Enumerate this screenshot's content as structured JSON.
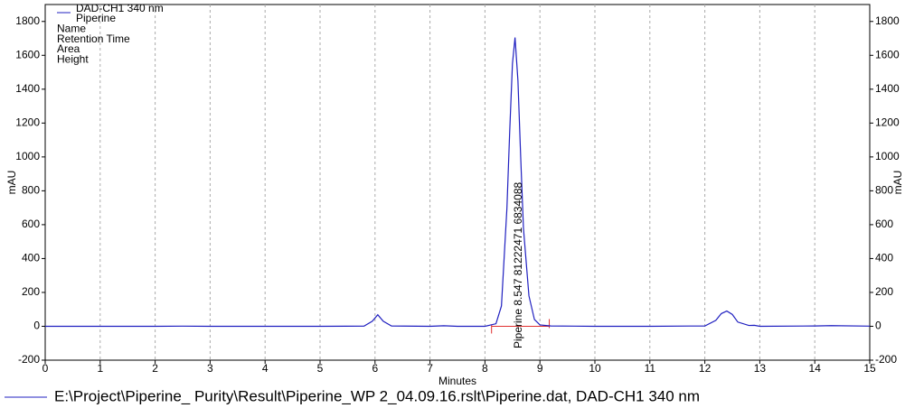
{
  "chart_data": {
    "type": "line",
    "series": [
      {
        "name": "DAD-CH1 340 nm",
        "color": "#2020c0",
        "x": [
          0,
          1,
          2,
          2.5,
          3,
          4,
          5,
          5.8,
          5.95,
          6.05,
          6.15,
          6.3,
          7,
          7.25,
          7.5,
          8,
          8.2,
          8.3,
          8.4,
          8.45,
          8.5,
          8.547,
          8.6,
          8.65,
          8.7,
          8.8,
          8.9,
          9,
          9.2,
          10,
          11,
          12,
          12.2,
          12.3,
          12.4,
          12.5,
          12.6,
          12.8,
          12.9,
          13,
          14,
          14.3,
          15
        ],
        "values": [
          0,
          0,
          0,
          1,
          0,
          0,
          0,
          1,
          30,
          68,
          30,
          2,
          0,
          3,
          0,
          0,
          15,
          120,
          700,
          1150,
          1550,
          1705,
          1450,
          1000,
          580,
          180,
          40,
          8,
          2,
          0,
          0,
          2,
          35,
          75,
          90,
          70,
          25,
          5,
          6,
          0,
          2,
          4,
          1
        ]
      }
    ],
    "legend_lines": [
      "Piperine",
      "Name",
      "Retention Time",
      "Area",
      "Height"
    ],
    "peak_label": {
      "x": 8.547,
      "text": "Piperine 8.547 81222471 6834088"
    },
    "baseline": {
      "start": 8.12,
      "end": 9.17,
      "color": "#e03030"
    },
    "xlabel": "Minutes",
    "ylabel": "mAU",
    "y2label": "mAU",
    "xlim": [
      0,
      15
    ],
    "xticks": [
      0,
      1,
      2,
      3,
      4,
      5,
      6,
      7,
      8,
      9,
      10,
      11,
      12,
      13,
      14,
      15
    ],
    "ylim": [
      -200,
      1900
    ],
    "yticks": [
      -200,
      0,
      200,
      400,
      600,
      800,
      1000,
      1200,
      1400,
      1600,
      1800
    ],
    "grid": true,
    "footer": "E:\\Project\\Piperine_ Purity\\Result\\Piperine_WP 2_04.09.16.rslt\\Piperine.dat, DAD-CH1  340 nm"
  }
}
